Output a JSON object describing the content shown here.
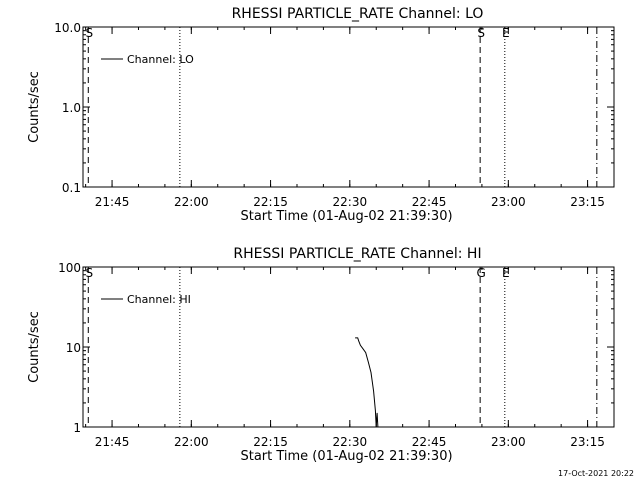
{
  "chart_data": [
    {
      "type": "line",
      "title": "RHESSI PARTICLE_RATE Channel: LO",
      "xlabel": "Start Time (01-Aug-02 21:39:30)",
      "ylabel": "Counts/sec",
      "yscale": "log",
      "ylim": [
        0.1,
        10.0
      ],
      "yticks": [
        0.1,
        1.0,
        10.0
      ],
      "ytick_labels": [
        "0.1",
        "1.0",
        "10.0"
      ],
      "xlim": [
        "21:39:30",
        "23:20:00"
      ],
      "xticks": [
        "21:45",
        "22:00",
        "22:15",
        "22:30",
        "22:45",
        "23:00",
        "23:15"
      ],
      "legend": {
        "placement": "top-left",
        "entries": [
          "Channel: LO"
        ]
      },
      "series": [
        {
          "name": "Channel: LO",
          "points": []
        }
      ],
      "markers": [
        {
          "time": "21:40:30",
          "style": "dashed",
          "label": "S"
        },
        {
          "time": "21:57:50",
          "style": "dotted",
          "label": ""
        },
        {
          "time": "22:54:40",
          "style": "dashed",
          "label": "S"
        },
        {
          "time": "22:59:20",
          "style": "dotted",
          "label": "E"
        },
        {
          "time": "23:16:45",
          "style": "dashdot",
          "label": ""
        }
      ]
    },
    {
      "type": "line",
      "title": "RHESSI PARTICLE_RATE Channel: HI",
      "xlabel": "Start Time (01-Aug-02 21:39:30)",
      "ylabel": "Counts/sec",
      "yscale": "log",
      "ylim": [
        1,
        100
      ],
      "yticks": [
        1,
        10,
        100
      ],
      "ytick_labels": [
        "1",
        "10",
        "100"
      ],
      "xlim": [
        "21:39:30",
        "23:20:00"
      ],
      "xticks": [
        "21:45",
        "22:00",
        "22:15",
        "22:30",
        "22:45",
        "23:00",
        "23:15"
      ],
      "legend": {
        "placement": "top-left",
        "entries": [
          "Channel: HI"
        ]
      },
      "series": [
        {
          "name": "Channel: HI",
          "points": [
            [
              "22:31:00",
              13.0
            ],
            [
              "22:31:30",
              13.0
            ],
            [
              "22:31:40",
              12.0
            ],
            [
              "22:32:00",
              10.5
            ],
            [
              "22:32:30",
              9.5
            ],
            [
              "22:33:00",
              8.5
            ],
            [
              "22:33:30",
              6.5
            ],
            [
              "22:34:00",
              4.8
            ],
            [
              "22:34:30",
              2.8
            ],
            [
              "22:34:50",
              1.6
            ],
            [
              "22:35:00",
              1.0
            ],
            [
              "22:35:10",
              1.5
            ],
            [
              "22:35:20",
              0.95
            ]
          ]
        }
      ],
      "markers": [
        {
          "time": "21:40:30",
          "style": "dashed",
          "label": "S"
        },
        {
          "time": "21:57:50",
          "style": "dotted",
          "label": ""
        },
        {
          "time": "22:54:40",
          "style": "dashed",
          "label": "G"
        },
        {
          "time": "22:59:20",
          "style": "dotted",
          "label": "E"
        },
        {
          "time": "23:16:45",
          "style": "dashdot",
          "label": ""
        }
      ]
    }
  ],
  "footer": {
    "timestamp": "17-Oct-2021 20:22"
  }
}
